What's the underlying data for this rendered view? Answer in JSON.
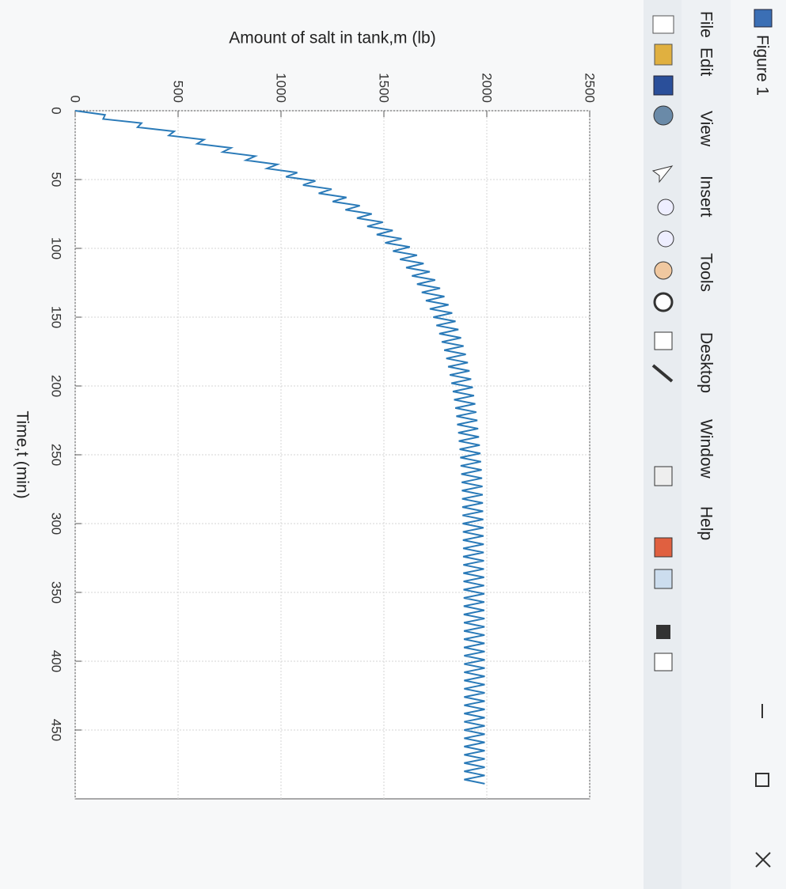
{
  "window": {
    "title": "Figure 1"
  },
  "menu": [
    "File",
    "Edit",
    "View",
    "Insert",
    "Tools",
    "Desktop",
    "Window",
    "Help"
  ],
  "chart_data": {
    "type": "line",
    "xlabel": "Time,t (min)",
    "ylabel": "Amount of salt in tank,m (lb)",
    "color": "#2a7ab8",
    "grid": true,
    "xlim": [
      0,
      500
    ],
    "xticks": [
      0,
      50,
      100,
      150,
      200,
      250,
      300,
      350,
      400,
      450
    ],
    "ylim": [
      0,
      2500
    ],
    "yticks": [
      0,
      500,
      1000,
      1500,
      2000,
      2500
    ],
    "x": [
      0,
      3,
      6,
      9,
      12,
      15,
      18,
      21,
      24,
      27,
      30,
      33,
      36,
      39,
      42,
      45,
      48,
      51,
      54,
      57,
      60,
      63,
      66,
      69,
      72,
      75,
      78,
      81,
      84,
      87,
      90,
      93,
      96,
      99,
      102,
      105,
      108,
      111,
      114,
      117,
      120,
      123,
      126,
      129,
      132,
      135,
      138,
      141,
      144,
      147,
      150,
      153,
      156,
      159,
      162,
      165,
      168,
      171,
      174,
      177,
      180,
      183,
      186,
      189,
      192,
      195,
      198,
      201,
      204,
      207,
      210,
      213,
      216,
      219,
      222,
      225,
      228,
      231,
      234,
      237,
      240,
      243,
      246,
      249,
      252,
      255,
      258,
      261,
      264,
      267,
      270,
      273,
      276,
      279,
      282,
      285,
      288,
      291,
      294,
      297,
      300,
      303,
      306,
      309,
      312,
      315,
      318,
      321,
      324,
      327,
      330,
      333,
      336,
      339,
      342,
      345,
      348,
      351,
      354,
      357,
      360,
      363,
      366,
      369,
      372,
      375,
      378,
      381,
      384,
      387,
      390,
      393,
      396,
      399,
      402,
      405,
      408,
      411,
      414,
      417,
      420,
      423,
      426,
      429,
      432,
      435,
      438,
      441,
      444,
      447,
      450,
      453,
      456,
      459,
      462,
      465,
      468,
      471,
      474,
      477,
      480,
      483,
      486,
      489
    ],
    "values": [
      0,
      145,
      136,
      322,
      303,
      481,
      455,
      626,
      593,
      757,
      717,
      875,
      830,
      982,
      932,
      1079,
      1024,
      1167,
      1107,
      1246,
      1183,
      1318,
      1251,
      1383,
      1313,
      1441,
      1369,
      1495,
      1419,
      1543,
      1465,
      1586,
      1506,
      1626,
      1544,
      1661,
      1578,
      1693,
      1608,
      1723,
      1636,
      1749,
      1661,
      1773,
      1684,
      1794,
      1704,
      1814,
      1723,
      1832,
      1740,
      1848,
      1755,
      1862,
      1769,
      1875,
      1781,
      1887,
      1793,
      1898,
      1803,
      1908,
      1812,
      1916,
      1820,
      1924,
      1828,
      1932,
      1835,
      1938,
      1841,
      1944,
      1847,
      1949,
      1852,
      1954,
      1856,
      1958,
      1861,
      1962,
      1864,
      1966,
      1868,
      1969,
      1871,
      1972,
      1873,
      1975,
      1876,
      1977,
      1878,
      1979,
      1879,
      1980,
      1880,
      1981,
      1881,
      1982,
      1882,
      1983,
      1883,
      1984,
      1884,
      1984,
      1884,
      1985,
      1885,
      1985,
      1885,
      1986,
      1886,
      1986,
      1886,
      1987,
      1887,
      1987,
      1887,
      1988,
      1888,
      1988,
      1888,
      1988,
      1888,
      1989,
      1889,
      1989,
      1889,
      1989,
      1889,
      1989,
      1889,
      1990,
      1890,
      1990,
      1890,
      1990,
      1890,
      1990,
      1890,
      1990,
      1890,
      1990,
      1890,
      1990,
      1890,
      1990,
      1890,
      1990,
      1890,
      1990,
      1890,
      1990,
      1890,
      1990,
      1890,
      1990,
      1890,
      1990,
      1890,
      1990,
      1890,
      1990,
      1890,
      1990
    ]
  }
}
